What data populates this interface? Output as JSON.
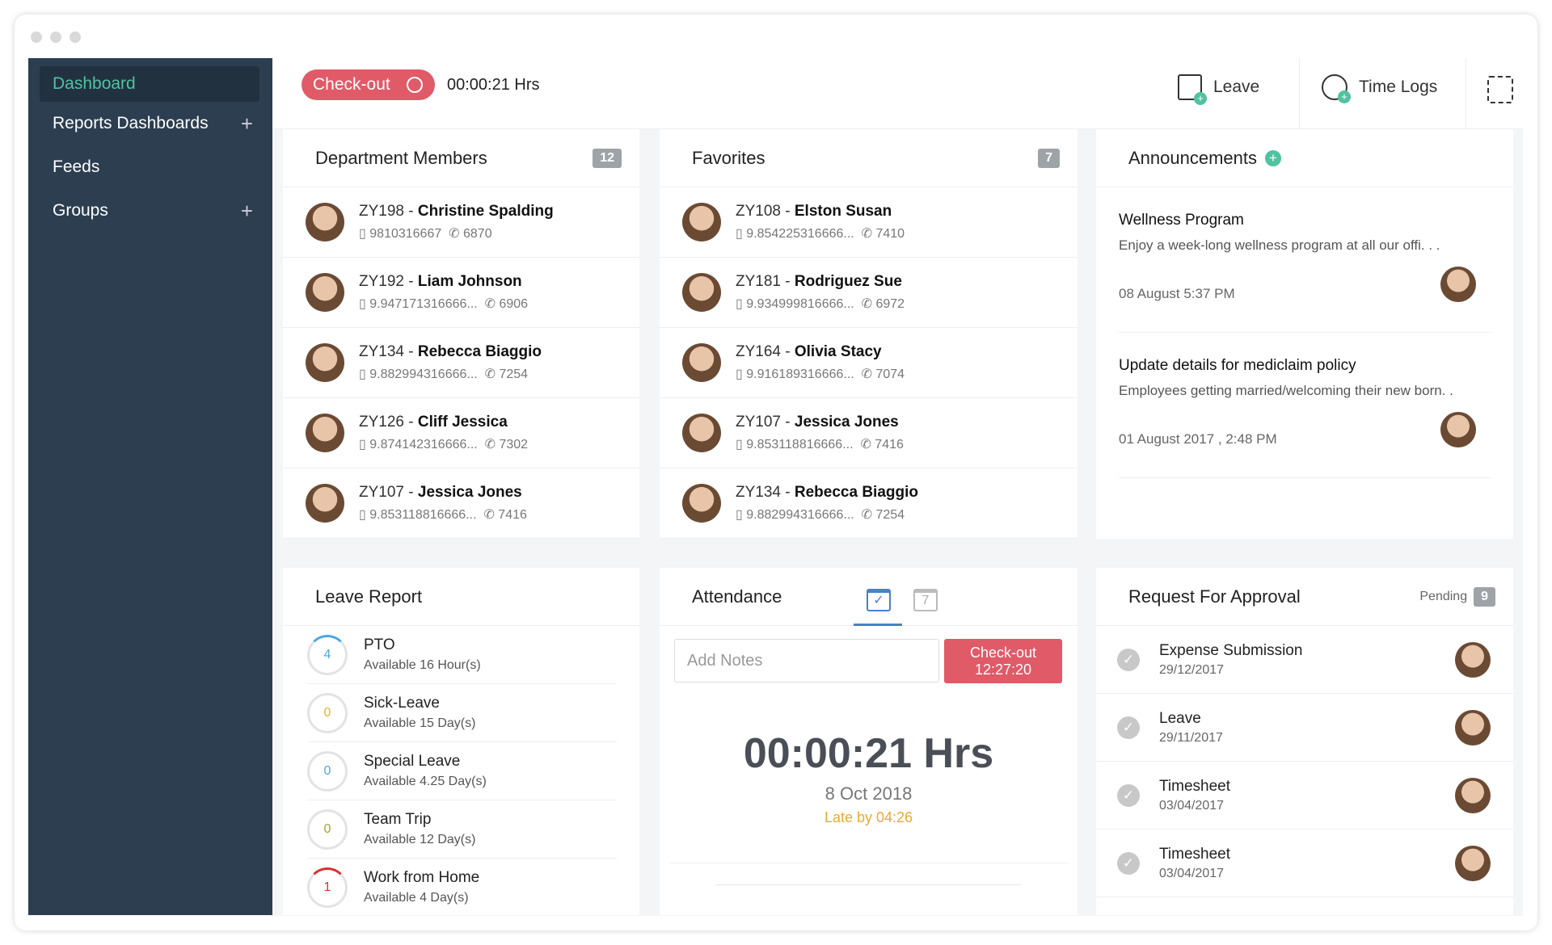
{
  "sidebar": {
    "items": [
      {
        "label": "Dashboard",
        "active": true
      },
      {
        "label": "Reports Dashboards",
        "plus": true
      },
      {
        "label": "Feeds"
      },
      {
        "label": "Groups",
        "plus": true
      }
    ]
  },
  "topbar": {
    "checkout_label": "Check-out",
    "timer": "00:00:21 Hrs",
    "leave_label": "Leave",
    "timelogs_label": "Time Logs"
  },
  "department": {
    "title": "Department Members",
    "count": "12",
    "members": [
      {
        "id": "ZY198 - ",
        "name": "Christine Spalding",
        "mobile": "9810316667",
        "ext": "6870"
      },
      {
        "id": "ZY192 - ",
        "name": "Liam Johnson",
        "mobile": "9.947171316666...",
        "ext": "6906"
      },
      {
        "id": "ZY134 - ",
        "name": "Rebecca Biaggio",
        "mobile": "9.882994316666...",
        "ext": "7254"
      },
      {
        "id": "ZY126 - ",
        "name": "Cliff Jessica",
        "mobile": "9.874142316666...",
        "ext": "7302"
      },
      {
        "id": "ZY107 - ",
        "name": "Jessica Jones",
        "mobile": "9.853118816666...",
        "ext": "7416"
      }
    ]
  },
  "favorites": {
    "title": "Favorites",
    "count": "7",
    "members": [
      {
        "id": "ZY108 - ",
        "name": "Elston Susan",
        "mobile": "9.854225316666...",
        "ext": "7410"
      },
      {
        "id": "ZY181 - ",
        "name": "Rodriguez Sue",
        "mobile": "9.934999816666...",
        "ext": "6972"
      },
      {
        "id": "ZY164 - ",
        "name": "Olivia Stacy",
        "mobile": "9.916189316666...",
        "ext": "7074"
      },
      {
        "id": "ZY107 - ",
        "name": "Jessica Jones",
        "mobile": "9.853118816666...",
        "ext": "7416"
      },
      {
        "id": "ZY134 - ",
        "name": "Rebecca Biaggio",
        "mobile": "9.882994316666...",
        "ext": "7254"
      }
    ]
  },
  "announcements": {
    "title": "Announcements",
    "items": [
      {
        "title": "Wellness Program",
        "body": "Enjoy a week-long wellness program at all our offi. . .",
        "date": "08 August 5:37 PM"
      },
      {
        "title": "Update details for mediclaim policy",
        "body": "Employees getting married/welcoming their new born. .",
        "date": "01 August 2017 , 2:48 PM"
      }
    ]
  },
  "leave_report": {
    "title": "Leave Report",
    "items": [
      {
        "name": "PTO",
        "count": "4",
        "available": "Available 16 Hour(s)",
        "color": "#4aa8e0"
      },
      {
        "name": "Sick-Leave",
        "count": "0",
        "available": "Available 15 Day(s)",
        "color": "#e6b422"
      },
      {
        "name": "Special Leave",
        "count": "0",
        "available": "Available 4.25 Day(s)",
        "color": "#4aa8e0"
      },
      {
        "name": "Team Trip",
        "count": "0",
        "available": "Available 12 Day(s)",
        "color": "#9aaa2a"
      },
      {
        "name": "Work from Home",
        "count": "1",
        "available": "Available 4 Day(s)",
        "color": "#d9302f"
      }
    ]
  },
  "attendance": {
    "title": "Attendance",
    "notes_placeholder": "Add Notes",
    "checkout_label": "Check-out",
    "checkout_time": "12:27:20",
    "timer": "00:00:21 Hrs",
    "date": "8 Oct 2018",
    "late": "Late by 04:26",
    "calendar_day": "7"
  },
  "approval": {
    "title": "Request For Approval",
    "pending_label": "Pending",
    "pending_count": "9",
    "items": [
      {
        "type": "Expense Submission",
        "date": "29/12/2017"
      },
      {
        "type": "Leave",
        "date": "29/11/2017"
      },
      {
        "type": "Timesheet",
        "date": "03/04/2017"
      },
      {
        "type": "Timesheet",
        "date": "03/04/2017"
      }
    ]
  },
  "colors": {
    "sidebar": "#2c3e50",
    "accent": "#4fc3a1",
    "danger": "#e05a67",
    "late": "#f0a830"
  }
}
